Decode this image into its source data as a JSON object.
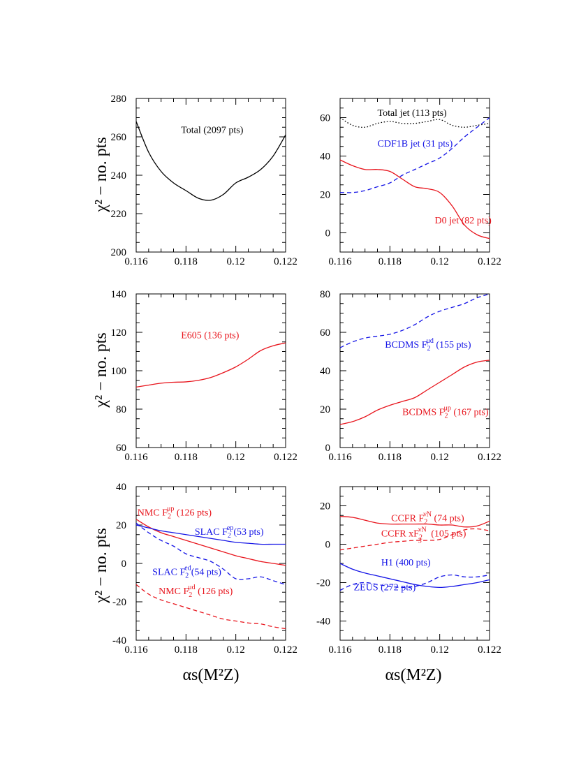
{
  "page": {
    "ylabel": "χ² − no. pts",
    "xlabel": "αs(M²Z)"
  },
  "colors": {
    "black": "#000000",
    "red": "#e8141c",
    "blue": "#1414e6"
  },
  "chart_data": [
    {
      "type": "line",
      "xlim": [
        0.116,
        0.122
      ],
      "ylim": [
        200,
        280
      ],
      "xticks": [
        "0.116",
        "0.118",
        "0.12",
        "0.122"
      ],
      "yticks": [
        "200",
        "220",
        "240",
        "260",
        "280"
      ],
      "labels": [
        {
          "text": "Total (2097 pts)",
          "color": "black",
          "x": 0.1178,
          "y": 262
        }
      ],
      "series": [
        {
          "color": "black",
          "dash": "solid",
          "x": [
            0.116,
            0.1165,
            0.117,
            0.1175,
            0.118,
            0.1185,
            0.119,
            0.1195,
            0.12,
            0.1205,
            0.121,
            0.1215,
            0.122
          ],
          "y": [
            268,
            252,
            242,
            236,
            232,
            228,
            227,
            230,
            236,
            239,
            243,
            250,
            261
          ]
        }
      ]
    },
    {
      "type": "line",
      "xlim": [
        0.116,
        0.122
      ],
      "ylim": [
        -10,
        70
      ],
      "xticks": [
        "0.116",
        "0.118",
        "0.12",
        "0.122"
      ],
      "yticks": [
        "0",
        "20",
        "40",
        "60"
      ],
      "labels": [
        {
          "text": "Total jet (113 pts)",
          "color": "black",
          "x": 0.1175,
          "y": 61
        },
        {
          "text": "CDF1B jet (31 pts)",
          "color": "blue",
          "x": 0.1175,
          "y": 45
        },
        {
          "text": "D0 jet (82 pts)",
          "color": "red",
          "x": 0.1198,
          "y": 5
        }
      ],
      "series": [
        {
          "color": "black",
          "dash": "dotted",
          "x": [
            0.116,
            0.1165,
            0.117,
            0.1175,
            0.118,
            0.1185,
            0.119,
            0.1195,
            0.12,
            0.1205,
            0.121,
            0.1215,
            0.122
          ],
          "y": [
            60,
            56,
            55,
            57,
            58,
            57,
            57,
            58,
            59,
            56,
            55,
            56,
            57
          ]
        },
        {
          "color": "blue",
          "dash": "dashed",
          "x": [
            0.116,
            0.1165,
            0.117,
            0.1175,
            0.118,
            0.1185,
            0.119,
            0.1195,
            0.12,
            0.1205,
            0.121,
            0.1215,
            0.122
          ],
          "y": [
            21,
            21,
            22,
            24,
            26,
            30,
            33,
            36,
            39,
            44,
            50,
            55,
            60
          ]
        },
        {
          "color": "red",
          "dash": "solid",
          "x": [
            0.116,
            0.1165,
            0.117,
            0.1175,
            0.118,
            0.1185,
            0.119,
            0.1195,
            0.12,
            0.1205,
            0.121,
            0.1215,
            0.122
          ],
          "y": [
            38,
            35,
            33,
            33,
            32,
            28,
            24,
            23,
            21,
            14,
            4,
            -1,
            -3
          ]
        }
      ]
    },
    {
      "type": "line",
      "xlim": [
        0.116,
        0.122
      ],
      "ylim": [
        60,
        140
      ],
      "xticks": [
        "0.116",
        "0.118",
        "0.12",
        "0.122"
      ],
      "yticks": [
        "60",
        "80",
        "100",
        "120",
        "140"
      ],
      "labels": [
        {
          "text": "E605 (136 pts)",
          "color": "red",
          "x": 0.1178,
          "y": 117
        }
      ],
      "series": [
        {
          "color": "red",
          "dash": "solid",
          "x": [
            0.116,
            0.1165,
            0.117,
            0.1175,
            0.118,
            0.1185,
            0.119,
            0.1195,
            0.12,
            0.1205,
            0.121,
            0.1215,
            0.122
          ],
          "y": [
            91.5,
            92.5,
            93.5,
            94,
            94.2,
            95,
            96.5,
            99,
            102,
            106,
            110.5,
            113,
            114.5
          ]
        }
      ]
    },
    {
      "type": "line",
      "xlim": [
        0.116,
        0.122
      ],
      "ylim": [
        0,
        80
      ],
      "xticks": [
        "0.116",
        "0.118",
        "0.12",
        "0.122"
      ],
      "yticks": [
        "0",
        "20",
        "40",
        "60",
        "80"
      ],
      "labels": [
        {
          "text": "BCDMS F",
          "sup": "μd",
          "tail": " (155 pts)",
          "color": "blue",
          "x": 0.1178,
          "y": 52
        },
        {
          "text": "BCDMS F",
          "sup": "μp",
          "tail": " (167 pts)",
          "color": "red",
          "x": 0.1185,
          "y": 17
        }
      ],
      "series": [
        {
          "color": "blue",
          "dash": "dashed",
          "x": [
            0.116,
            0.1165,
            0.117,
            0.1175,
            0.118,
            0.1185,
            0.119,
            0.1195,
            0.12,
            0.1205,
            0.121,
            0.1215,
            0.122
          ],
          "y": [
            52,
            55,
            57,
            58,
            59,
            61,
            64,
            68,
            71,
            73,
            75,
            78,
            80
          ]
        },
        {
          "color": "red",
          "dash": "solid",
          "x": [
            0.116,
            0.1165,
            0.117,
            0.1175,
            0.118,
            0.1185,
            0.119,
            0.1195,
            0.12,
            0.1205,
            0.121,
            0.1215,
            0.122
          ],
          "y": [
            12,
            13.5,
            16,
            19.5,
            22,
            24,
            26,
            30,
            34,
            38,
            42,
            44.5,
            45.5
          ]
        }
      ]
    },
    {
      "type": "line",
      "xlim": [
        0.116,
        0.122
      ],
      "ylim": [
        -40,
        40
      ],
      "xticks": [
        "0.116",
        "0.118",
        "0.12",
        "0.122"
      ],
      "yticks": [
        "-40",
        "-20",
        "0",
        "20",
        "40"
      ],
      "labels": [
        {
          "text": "NMC F",
          "sup": "μp",
          "tail": " (126 pts)",
          "color": "red",
          "x": 0.11605,
          "y": 25
        },
        {
          "text": "SLAC F",
          "sup": "ep",
          "tail": "(53 pts)",
          "color": "blue",
          "x": 0.11835,
          "y": 15
        },
        {
          "text": "SLAC F",
          "sup": "ed",
          "tail": "(54 pts)",
          "color": "blue",
          "x": 0.11665,
          "y": -6
        },
        {
          "text": "NMC F",
          "sup": "μd",
          "tail": " (126 pts)",
          "color": "red",
          "x": 0.1169,
          "y": -16
        }
      ],
      "series": [
        {
          "color": "red",
          "dash": "solid",
          "x": [
            0.116,
            0.1165,
            0.117,
            0.1175,
            0.118,
            0.1185,
            0.119,
            0.1195,
            0.12,
            0.1205,
            0.121,
            0.1215,
            0.122
          ],
          "y": [
            23,
            19,
            16,
            14,
            12,
            10,
            8,
            6,
            4,
            2.5,
            1,
            0,
            -1
          ]
        },
        {
          "color": "blue",
          "dash": "solid",
          "x": [
            0.116,
            0.1165,
            0.117,
            0.1175,
            0.118,
            0.1185,
            0.119,
            0.1195,
            0.12,
            0.1205,
            0.121,
            0.1215,
            0.122
          ],
          "y": [
            20,
            18.5,
            17,
            16,
            15,
            14,
            13,
            12,
            11,
            10.5,
            10,
            10,
            10
          ]
        },
        {
          "color": "blue",
          "dash": "dashed",
          "x": [
            0.116,
            0.1165,
            0.117,
            0.1175,
            0.118,
            0.1185,
            0.119,
            0.1195,
            0.12,
            0.1205,
            0.121,
            0.1215,
            0.122
          ],
          "y": [
            21,
            16,
            12,
            9,
            5,
            3,
            1,
            -3,
            -8,
            -8,
            -7,
            -9,
            -11
          ]
        },
        {
          "color": "red",
          "dash": "dashed",
          "x": [
            0.116,
            0.1165,
            0.117,
            0.1175,
            0.118,
            0.1185,
            0.119,
            0.1195,
            0.12,
            0.1205,
            0.121,
            0.1215,
            0.122
          ],
          "y": [
            -11,
            -16,
            -19,
            -21,
            -23,
            -25,
            -27,
            -29,
            -30,
            -31,
            -31.5,
            -33,
            -34
          ]
        }
      ]
    },
    {
      "type": "line",
      "xlim": [
        0.116,
        0.122
      ],
      "ylim": [
        -50,
        30
      ],
      "xticks": [
        "0.116",
        "0.118",
        "0.12",
        "0.122"
      ],
      "yticks": [
        "-40",
        "-20",
        "0",
        "20"
      ],
      "labels": [
        {
          "text": "CCFR F",
          "sup": "νN",
          "tail": " (74 pts)",
          "color": "red",
          "x": 0.11805,
          "y": 12
        },
        {
          "text": "CCFR xF",
          "sup": "νN",
          "sub": "3",
          "tail": " (105 pts)",
          "color": "red",
          "x": 0.11765,
          "y": 4
        },
        {
          "text": "H1 (400 pts)",
          "color": "blue",
          "x": 0.11765,
          "y": -11
        },
        {
          "text": "ZEUS (272 pts)",
          "color": "blue",
          "x": 0.11655,
          "y": -24
        }
      ],
      "series": [
        {
          "color": "red",
          "dash": "solid",
          "x": [
            0.116,
            0.1165,
            0.117,
            0.1175,
            0.118,
            0.1185,
            0.119,
            0.1195,
            0.12,
            0.1205,
            0.121,
            0.1215,
            0.122
          ],
          "y": [
            14.5,
            14,
            12.5,
            11,
            10.5,
            10.5,
            10.5,
            10.5,
            10,
            10,
            9,
            9.5,
            12
          ]
        },
        {
          "color": "red",
          "dash": "dashed",
          "x": [
            0.116,
            0.1165,
            0.117,
            0.1175,
            0.118,
            0.1185,
            0.119,
            0.1195,
            0.12,
            0.1205,
            0.121,
            0.1215,
            0.122
          ],
          "y": [
            -3,
            -2,
            -1,
            0,
            1,
            1.5,
            2,
            2,
            2.5,
            5,
            7.5,
            8,
            7
          ]
        },
        {
          "color": "blue",
          "dash": "solid",
          "x": [
            0.116,
            0.1165,
            0.117,
            0.1175,
            0.118,
            0.1185,
            0.119,
            0.1195,
            0.12,
            0.1205,
            0.121,
            0.1215,
            0.122
          ],
          "y": [
            -10,
            -13,
            -15,
            -16.5,
            -18,
            -19.5,
            -21,
            -22,
            -22.5,
            -22,
            -21,
            -20,
            -18.5
          ]
        },
        {
          "color": "blue",
          "dash": "dashed",
          "x": [
            0.116,
            0.1165,
            0.117,
            0.1175,
            0.118,
            0.1185,
            0.119,
            0.1195,
            0.12,
            0.1205,
            0.121,
            0.1215,
            0.122
          ],
          "y": [
            -24,
            -21,
            -20,
            -21,
            -22,
            -22.5,
            -22,
            -20,
            -17,
            -16,
            -17,
            -17,
            -16
          ]
        }
      ]
    }
  ]
}
